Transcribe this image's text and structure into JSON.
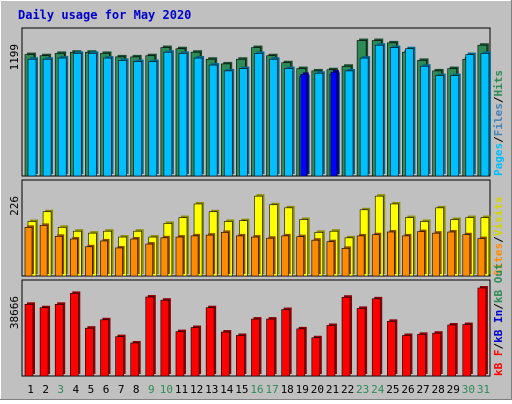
{
  "chart_data": [
    {
      "type": "bar",
      "title": "Daily usage for May 2020",
      "panel": "pages-files-hits",
      "max_label": "1199",
      "legend": [
        "Pages",
        "Files",
        "Hits"
      ],
      "legend_separator": "/",
      "categories": [
        "1",
        "2",
        "3",
        "4",
        "5",
        "6",
        "7",
        "8",
        "9",
        "10",
        "11",
        "12",
        "13",
        "14",
        "15",
        "16",
        "17",
        "18",
        "19",
        "20",
        "21",
        "22",
        "23",
        "24",
        "25",
        "26",
        "27",
        "28",
        "29",
        "30",
        "31"
      ],
      "weekend_days": [
        "3",
        "9",
        "10",
        "16",
        "17",
        "23",
        "24",
        "30",
        "31"
      ],
      "ylim": [
        0,
        1199
      ],
      "series": [
        {
          "name": "Hits",
          "color": "#2e8b57",
          "values": [
            1040,
            1030,
            1050,
            1060,
            1060,
            1050,
            1020,
            1020,
            1030,
            1100,
            1090,
            1060,
            1000,
            960,
            1000,
            1100,
            1030,
            970,
            920,
            900,
            910,
            940,
            1160,
            1160,
            1140,
            1060,
            990,
            900,
            920,
            1000,
            1120
          ]
        },
        {
          "name": "Files",
          "color": "#00bfff",
          "values": [
            1000,
            1000,
            1010,
            1050,
            1050,
            1010,
            990,
            980,
            980,
            1060,
            1050,
            1010,
            950,
            900,
            920,
            1050,
            1000,
            920,
            850,
            880,
            870,
            900,
            1010,
            1120,
            1100,
            1090,
            940,
            860,
            860,
            1040,
            1050
          ]
        },
        {
          "name": "Pages",
          "color": "#0000ff",
          "values": [
            0,
            0,
            0,
            0,
            0,
            0,
            0,
            0,
            0,
            0,
            0,
            0,
            0,
            0,
            0,
            0,
            0,
            0,
            870,
            0,
            890,
            0,
            0,
            0,
            0,
            0,
            0,
            0,
            0,
            0,
            0
          ]
        }
      ]
    },
    {
      "type": "bar",
      "panel": "visits-sites",
      "max_label": "226",
      "legend": [
        "Sites",
        "Visits"
      ],
      "legend_separator": "/",
      "ylim": [
        0,
        226
      ],
      "series": [
        {
          "name": "Visits",
          "color": "#ffff00",
          "values": [
            140,
            165,
            125,
            115,
            110,
            115,
            100,
            115,
            100,
            135,
            150,
            185,
            165,
            140,
            142,
            205,
            183,
            175,
            145,
            112,
            115,
            98,
            170,
            205,
            185,
            150,
            140,
            175,
            145,
            150,
            150
          ]
        },
        {
          "name": "Sites",
          "color": "#ff8c00",
          "values": [
            125,
            130,
            102,
            95,
            75,
            90,
            72,
            95,
            82,
            98,
            100,
            103,
            105,
            112,
            103,
            100,
            97,
            103,
            101,
            92,
            88,
            71,
            103,
            106,
            113,
            103,
            114,
            110,
            113,
            106,
            96
          ]
        }
      ]
    },
    {
      "type": "bar",
      "panel": "kb-in-out-f",
      "max_label": "38666",
      "legend": [
        "kB F",
        "kB In",
        "kB Out"
      ],
      "legend_separator": "/",
      "ylim": [
        0,
        38666
      ],
      "series": [
        {
          "name": "kB F",
          "color": "#ff0000",
          "values": [
            31500,
            30000,
            31500,
            36300,
            21000,
            24700,
            17300,
            14500,
            34700,
            33300,
            19500,
            21300,
            30000,
            19300,
            17800,
            25000,
            25000,
            29200,
            20700,
            16800,
            22200,
            34600,
            29700,
            33900,
            24000,
            17800,
            18300,
            18800,
            22400,
            22600,
            38666
          ]
        }
      ]
    }
  ],
  "legend_colors": {
    "Pages": "#00bfff",
    "Files": "#4682b4",
    "Hits": "#2e8b57",
    "Visits": "#d4d400",
    "Sites": "#ff8c00",
    "kB_F": "#ff0000",
    "kB_In": "#0000cc",
    "kB_Out": "#2e8b57"
  }
}
